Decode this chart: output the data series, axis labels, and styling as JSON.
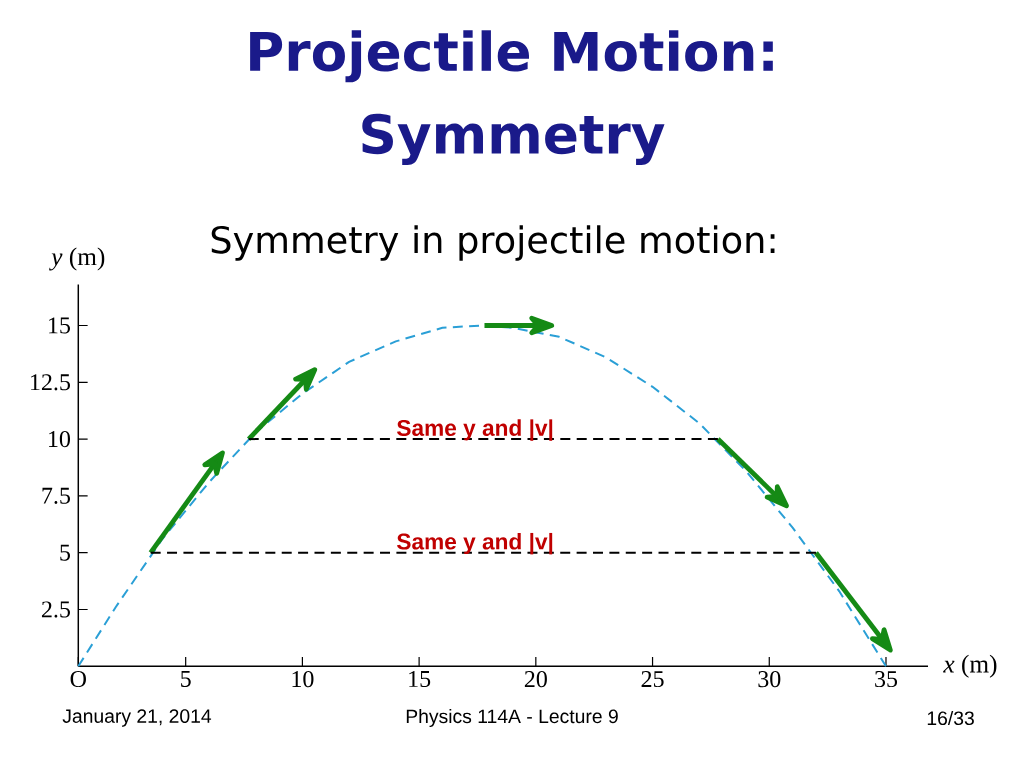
{
  "chart_data": {
    "type": "line",
    "title": "Projectile Motion: Symmetry",
    "subtitle": "Symmetry in projectile motion:",
    "xlabel": "*x* (m)",
    "ylabel": "*y* (m)",
    "xlim": [
      0.4,
      36.8
    ],
    "ylim": [
      0,
      16.8
    ],
    "xticks": [
      {
        "value": 0.4,
        "label": "O"
      },
      5,
      10,
      15,
      20,
      25,
      30,
      35
    ],
    "yticks": [
      2.5,
      5,
      7.5,
      10,
      12.5,
      15
    ],
    "series": [
      {
        "color": "#2a9fd6",
        "line_style": "dashed",
        "x": [
          0.4,
          2,
          4,
          6,
          8,
          10,
          12,
          14,
          16,
          17.7,
          19,
          21,
          23,
          25,
          27,
          29,
          31,
          33,
          35
        ],
        "values": [
          0,
          2.6,
          5.6,
          8.1,
          10.3,
          12.0,
          13.4,
          14.3,
          14.9,
          15.0,
          14.9,
          14.5,
          13.6,
          12.3,
          10.7,
          8.6,
          6.1,
          3.3,
          0
        ]
      },
      {
        "color": "#158a15",
        "line_style": "solid",
        "x": [
          3.5,
          6.3
        ],
        "values": [
          5,
          9.0
        ]
      },
      {
        "color": "#158a15",
        "line_style": "solid",
        "x": [
          7.7,
          10.2
        ],
        "values": [
          10,
          12.7
        ]
      },
      {
        "color": "#158a15",
        "line_style": "solid",
        "x": [
          17.8,
          20.2
        ],
        "values": [
          15,
          15
        ]
      },
      {
        "color": "#158a15",
        "line_style": "solid",
        "x": [
          27.8,
          30.4
        ],
        "values": [
          10,
          7.4
        ]
      },
      {
        "color": "#158a15",
        "line_style": "solid",
        "x": [
          32.0,
          34.9
        ],
        "values": [
          5,
          1.1
        ]
      },
      {
        "color": "#000000",
        "line_style": "dashed",
        "x": [
          3.5,
          32.0
        ],
        "values": [
          5,
          5
        ]
      },
      {
        "color": "#000000",
        "line_style": "dashed",
        "x": [
          7.7,
          27.8
        ],
        "values": [
          10,
          10
        ]
      }
    ],
    "annotations": [
      {
        "text": "Same y and |v|",
        "x": 17.4,
        "y": 10
      },
      {
        "text": "Same y and |v|",
        "x": 17.4,
        "y": 5
      },
      "January 21, 2014",
      "Physics 114A - Lecture 9",
      "16/33"
    ]
  }
}
